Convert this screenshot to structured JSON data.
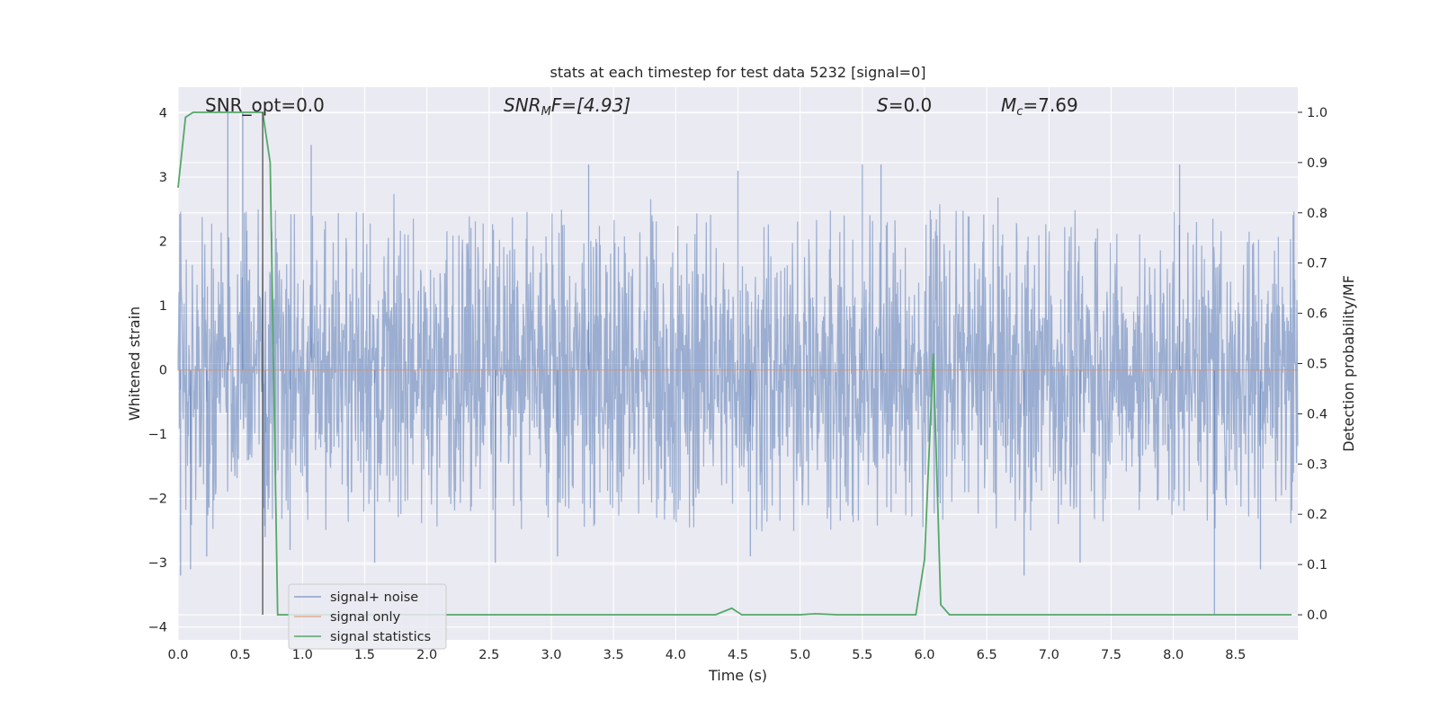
{
  "chart_data": {
    "type": "line",
    "title": "stats at each timestep for test data 5232 [signal=0]",
    "xlabel": "Time (s)",
    "ylabel": "Whitened strain",
    "y2label": "Detection probability/MF",
    "xlim": [
      0.0,
      9.0
    ],
    "ylim": [
      -4.2,
      4.4
    ],
    "y2lim": [
      -0.05,
      1.05
    ],
    "xticks": [
      0.0,
      0.5,
      1.0,
      1.5,
      2.0,
      2.5,
      3.0,
      3.5,
      4.0,
      4.5,
      5.0,
      5.5,
      6.0,
      6.5,
      7.0,
      7.5,
      8.0,
      8.5
    ],
    "xtick_labels": [
      "0.0",
      "0.5",
      "1.0",
      "1.5",
      "2.0",
      "2.5",
      "3.0",
      "3.5",
      "4.0",
      "4.5",
      "5.0",
      "5.5",
      "6.0",
      "6.5",
      "7.0",
      "7.5",
      "8.0",
      "8.5"
    ],
    "yticks": [
      4,
      3,
      2,
      1,
      0,
      -1,
      -2,
      -3,
      -4
    ],
    "ytick_labels": [
      "4",
      "3",
      "2",
      "1",
      "0",
      "−1",
      "−2",
      "−3",
      "−4"
    ],
    "y2ticks": [
      1.0,
      0.9,
      0.8,
      0.7,
      0.6,
      0.5,
      0.4,
      0.3,
      0.2,
      0.1,
      0.0
    ],
    "y2tick_labels": [
      "1.0",
      "0.9",
      "0.8",
      "0.7",
      "0.6",
      "0.5",
      "0.4",
      "0.3",
      "0.2",
      "0.1",
      "0.0"
    ],
    "grid": true,
    "legend_position": "lower-left",
    "annotations": {
      "snr_opt": "SNR_opt=0.0",
      "snr_mf_prefix": "SNR",
      "snr_mf_sub": "M",
      "snr_mf_suffix": "F=[4.93]",
      "s_prefix": "S",
      "s_suffix": "=0.0",
      "mc_prefix": "M",
      "mc_sub": "c",
      "mc_suffix": "=7.69"
    },
    "vertical_marker_x": 0.68,
    "series": [
      {
        "name": "signal+ noise",
        "color": "#4c72b0",
        "style": "dense noise, envelope approx ±1.7 with spikes to ±3.5",
        "spikes": [
          [
            0.02,
            -3.2
          ],
          [
            0.1,
            -3.1
          ],
          [
            0.23,
            -2.9
          ],
          [
            0.4,
            4.0
          ],
          [
            0.52,
            4.0
          ],
          [
            0.7,
            -2.6
          ],
          [
            0.9,
            -2.8
          ],
          [
            1.07,
            3.5
          ],
          [
            1.58,
            -3.0
          ],
          [
            2.55,
            -3.0
          ],
          [
            3.05,
            -2.9
          ],
          [
            3.3,
            3.2
          ],
          [
            4.5,
            3.1
          ],
          [
            4.6,
            -2.9
          ],
          [
            5.5,
            3.2
          ],
          [
            5.65,
            3.2
          ],
          [
            6.8,
            -3.2
          ],
          [
            7.25,
            -3.0
          ],
          [
            8.05,
            3.2
          ],
          [
            8.33,
            -3.8
          ],
          [
            8.7,
            -3.1
          ]
        ]
      },
      {
        "name": "signal only",
        "color": "#dd8452",
        "x": [
          0.0,
          9.0
        ],
        "y": [
          0.0,
          0.0
        ]
      },
      {
        "name": "signal statistics",
        "color": "#55a868",
        "axis": "right",
        "x": [
          0.0,
          0.06,
          0.12,
          0.2,
          0.3,
          0.4,
          0.5,
          0.6,
          0.68,
          0.74,
          0.8,
          0.9,
          1.0,
          2.0,
          3.0,
          4.0,
          4.32,
          4.45,
          4.53,
          5.0,
          5.12,
          5.3,
          5.93,
          6.0,
          6.07,
          6.13,
          6.2,
          7.0,
          8.0,
          8.95
        ],
        "y": [
          0.85,
          0.99,
          1.0,
          1.0,
          1.0,
          1.0,
          1.0,
          1.0,
          1.0,
          0.9,
          0.0,
          0.0,
          0.0,
          0.0,
          0.0,
          0.0,
          0.0,
          0.013,
          0.0,
          0.0,
          0.002,
          0.0,
          0.0,
          0.11,
          0.52,
          0.02,
          0.0,
          0.0,
          0.0,
          0.0
        ]
      }
    ]
  }
}
